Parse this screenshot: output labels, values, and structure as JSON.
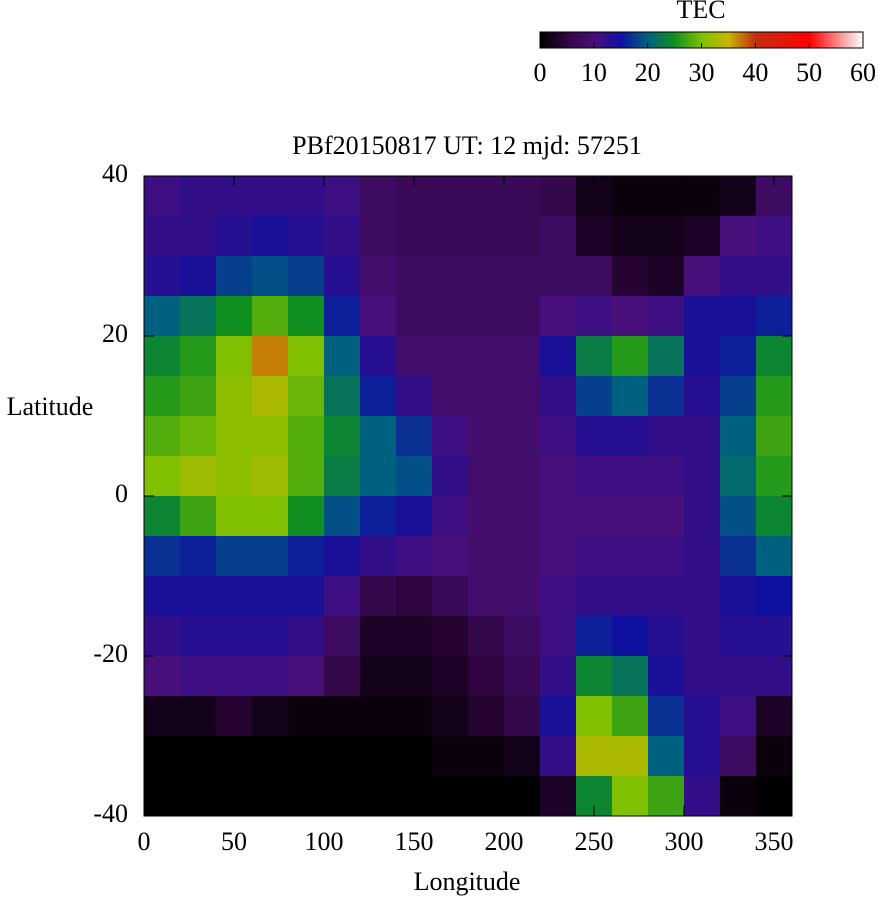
{
  "chart_data": {
    "type": "heatmap",
    "title": "PBf20150817  UT: 12  mjd: 57251",
    "xlabel": "Longitude",
    "ylabel": "Latitude",
    "colorbar_label": "TEC",
    "xlim": [
      0,
      360
    ],
    "xticks": [
      0,
      50,
      100,
      150,
      200,
      250,
      300,
      350
    ],
    "ylim": [
      -40,
      40
    ],
    "yticks": [
      40,
      20,
      0,
      -20,
      -40
    ],
    "clim": [
      0,
      60
    ],
    "cticks": [
      0,
      10,
      20,
      30,
      40,
      50,
      60
    ],
    "colorscale": [
      [
        0,
        "#000000"
      ],
      [
        5,
        "#30053f"
      ],
      [
        10,
        "#480f7a"
      ],
      [
        15,
        "#1010a0"
      ],
      [
        20,
        "#006080"
      ],
      [
        25,
        "#109020"
      ],
      [
        30,
        "#80c000"
      ],
      [
        35,
        "#c8b400"
      ],
      [
        40,
        "#c03010"
      ],
      [
        50,
        "#ff0000"
      ],
      [
        60,
        "#ffffff"
      ]
    ],
    "x": [
      10,
      30,
      50,
      70,
      90,
      110,
      130,
      150,
      170,
      190,
      210,
      230,
      250,
      270,
      290,
      310,
      330,
      350
    ],
    "y": [
      37.5,
      32.5,
      27.5,
      22.5,
      17.5,
      12.5,
      7.5,
      2.5,
      -2.5,
      -7.5,
      -12.5,
      -17.5,
      -22.5,
      -27.5,
      -32.5,
      -37.5
    ],
    "values": [
      [
        11,
        12,
        12,
        12,
        12,
        11,
        8,
        7,
        7,
        7,
        7,
        6,
        2,
        1,
        1,
        1,
        2,
        8
      ],
      [
        12,
        12,
        13,
        14,
        13,
        12,
        8,
        7,
        7,
        7,
        7,
        8,
        3,
        2,
        2,
        3,
        10,
        11
      ],
      [
        13,
        14,
        18,
        19,
        18,
        13,
        9,
        8,
        8,
        8,
        8,
        8,
        8,
        4,
        3,
        10,
        12,
        12
      ],
      [
        20,
        22,
        25,
        28,
        25,
        16,
        10,
        8,
        8,
        8,
        8,
        10,
        11,
        10,
        11,
        14,
        14,
        16
      ],
      [
        24,
        26,
        30,
        37,
        30,
        20,
        13,
        9,
        9,
        9,
        9,
        14,
        23,
        26,
        22,
        14,
        16,
        24
      ],
      [
        26,
        27,
        31,
        33,
        29,
        22,
        16,
        12,
        9,
        9,
        9,
        12,
        18,
        20,
        17,
        13,
        18,
        26
      ],
      [
        28,
        29,
        31,
        31,
        28,
        24,
        20,
        17,
        11,
        9,
        9,
        11,
        13,
        13,
        12,
        12,
        20,
        27
      ],
      [
        30,
        32,
        31,
        32,
        28,
        23,
        20,
        19,
        12,
        9,
        9,
        10,
        11,
        11,
        11,
        12,
        21,
        26
      ],
      [
        24,
        27,
        30,
        30,
        25,
        19,
        16,
        14,
        11,
        9,
        9,
        10,
        10,
        10,
        10,
        12,
        19,
        24
      ],
      [
        17,
        16,
        18,
        18,
        16,
        14,
        12,
        11,
        10,
        9,
        9,
        10,
        11,
        11,
        11,
        12,
        17,
        20
      ],
      [
        14,
        14,
        14,
        14,
        14,
        11,
        6,
        5,
        7,
        9,
        9,
        11,
        12,
        12,
        12,
        12,
        14,
        15
      ],
      [
        12,
        13,
        13,
        13,
        12,
        8,
        3,
        3,
        4,
        6,
        8,
        11,
        16,
        15,
        13,
        12,
        13,
        13
      ],
      [
        10,
        11,
        11,
        11,
        10,
        6,
        2,
        2,
        3,
        5,
        7,
        12,
        24,
        22,
        14,
        12,
        12,
        12
      ],
      [
        2,
        2,
        4,
        2,
        1,
        1,
        1,
        1,
        2,
        4,
        6,
        14,
        30,
        27,
        17,
        13,
        11,
        3
      ],
      [
        0,
        0,
        0,
        0,
        0,
        0,
        0,
        0,
        1,
        1,
        2,
        12,
        33,
        33,
        20,
        13,
        8,
        1
      ],
      [
        0,
        0,
        0,
        0,
        0,
        0,
        0,
        0,
        0,
        0,
        0,
        3,
        24,
        30,
        27,
        12,
        1,
        0
      ]
    ]
  }
}
